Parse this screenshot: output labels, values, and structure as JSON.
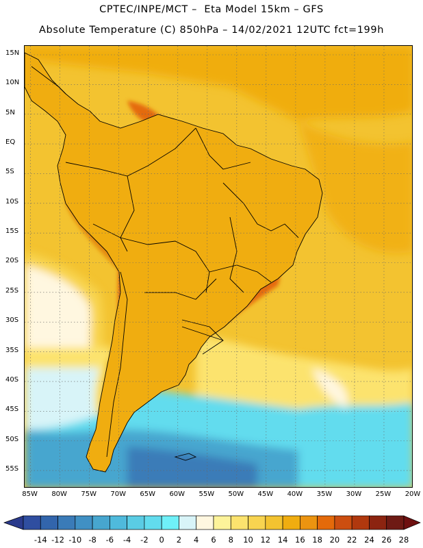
{
  "header": {
    "line1": "CPTEC/INPE/MCT –  Eta Model 15km – GFS",
    "line2": "Absolute Temperature (C) 850hPa – 14/02/2021 12UTC fct=199h"
  },
  "map": {
    "lat_ticks": [
      "15N",
      "10N",
      "5N",
      "EQ",
      "5S",
      "10S",
      "15S",
      "20S",
      "25S",
      "30S",
      "35S",
      "40S",
      "45S",
      "50S",
      "55S"
    ],
    "lon_ticks": [
      "85W",
      "80W",
      "75W",
      "70W",
      "65W",
      "60W",
      "55W",
      "50W",
      "45W",
      "40W",
      "35W",
      "30W",
      "25W",
      "20W"
    ],
    "lat_range": [
      -58,
      16.5
    ],
    "lon_range": [
      -86,
      -20
    ]
  },
  "colorbar": {
    "labels": [
      "-14",
      "-12",
      "-10",
      "-8",
      "-6",
      "-4",
      "-2",
      "0",
      "2",
      "4",
      "6",
      "8",
      "10",
      "12",
      "14",
      "16",
      "18",
      "20",
      "22",
      "24",
      "26",
      "28"
    ],
    "low_color": "#2a3a8c",
    "colors": [
      "#2f4ea0",
      "#3265ac",
      "#3a7bb8",
      "#4090c4",
      "#47a6cf",
      "#4fbadc",
      "#5acce4",
      "#62dcee",
      "#6ff0f8",
      "#d8f4f8",
      "#fff7e0",
      "#fdf39a",
      "#fce36e",
      "#f8d450",
      "#f3c330",
      "#f0ad10",
      "#ec9410",
      "#e46a0a",
      "#cc4e10",
      "#b0380e",
      "#8c2410",
      "#6e1a14"
    ],
    "high_color": "#6e1010"
  },
  "colors": {
    "ocean_base": "#f3c330",
    "land_hot": "#cc5a14",
    "gridline": "#666666"
  }
}
